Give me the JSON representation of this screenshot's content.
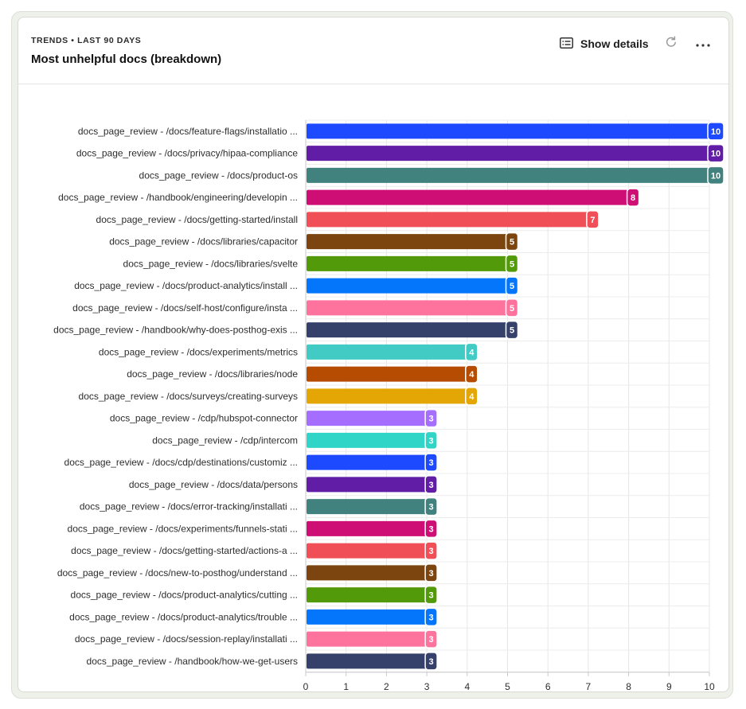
{
  "header": {
    "subtitle": "TRENDS • LAST 90 DAYS",
    "title": "Most unhelpful docs (breakdown)",
    "show_details_label": "Show details"
  },
  "icons": {
    "details": "list-details-icon",
    "refresh": "refresh-icon",
    "more": "more-horizontal-icon"
  },
  "chart_data": {
    "type": "bar",
    "orientation": "horizontal",
    "xlim": [
      0,
      10
    ],
    "x_ticks": [
      "0",
      "1",
      "2",
      "3",
      "4",
      "5",
      "6",
      "7",
      "8",
      "9",
      "10"
    ],
    "grid": true,
    "categories": [
      "docs_page_review - /docs/feature-flags/installatio ...",
      "docs_page_review - /docs/privacy/hipaa-compliance",
      "docs_page_review - /docs/product-os",
      "docs_page_review - /handbook/engineering/developin ...",
      "docs_page_review - /docs/getting-started/install",
      "docs_page_review - /docs/libraries/capacitor",
      "docs_page_review - /docs/libraries/svelte",
      "docs_page_review - /docs/product-analytics/install ...",
      "docs_page_review - /docs/self-host/configure/insta ...",
      "docs_page_review - /handbook/why-does-posthog-exis ...",
      "docs_page_review - /docs/experiments/metrics",
      "docs_page_review - /docs/libraries/node",
      "docs_page_review - /docs/surveys/creating-surveys",
      "docs_page_review - /cdp/hubspot-connector",
      "docs_page_review - /cdp/intercom",
      "docs_page_review - /docs/cdp/destinations/customiz ...",
      "docs_page_review - /docs/data/persons",
      "docs_page_review - /docs/error-tracking/installati ...",
      "docs_page_review - /docs/experiments/funnels-stati ...",
      "docs_page_review - /docs/getting-started/actions-a ...",
      "docs_page_review - /docs/new-to-posthog/understand ...",
      "docs_page_review - /docs/product-analytics/cutting ...",
      "docs_page_review - /docs/product-analytics/trouble ...",
      "docs_page_review - /docs/session-replay/installati ...",
      "docs_page_review - /handbook/how-we-get-users"
    ],
    "values": [
      10,
      10,
      10,
      8,
      7,
      5,
      5,
      5,
      5,
      5,
      4,
      4,
      4,
      3,
      3,
      3,
      3,
      3,
      3,
      3,
      3,
      3,
      3,
      3,
      3
    ],
    "colors": [
      "#1d4aff",
      "#621da6",
      "#42827e",
      "#ce0e74",
      "#f14f58",
      "#7c440e",
      "#529a0a",
      "#0476fb",
      "#fe729e",
      "#35416b",
      "#41cbc4",
      "#b64b02",
      "#e4a604",
      "#a56eff",
      "#30d5c8",
      "#1d4aff",
      "#621da6",
      "#42827e",
      "#ce0e74",
      "#f14f58",
      "#7c440e",
      "#529a0a",
      "#0476fb",
      "#fe729e",
      "#35416b"
    ]
  }
}
